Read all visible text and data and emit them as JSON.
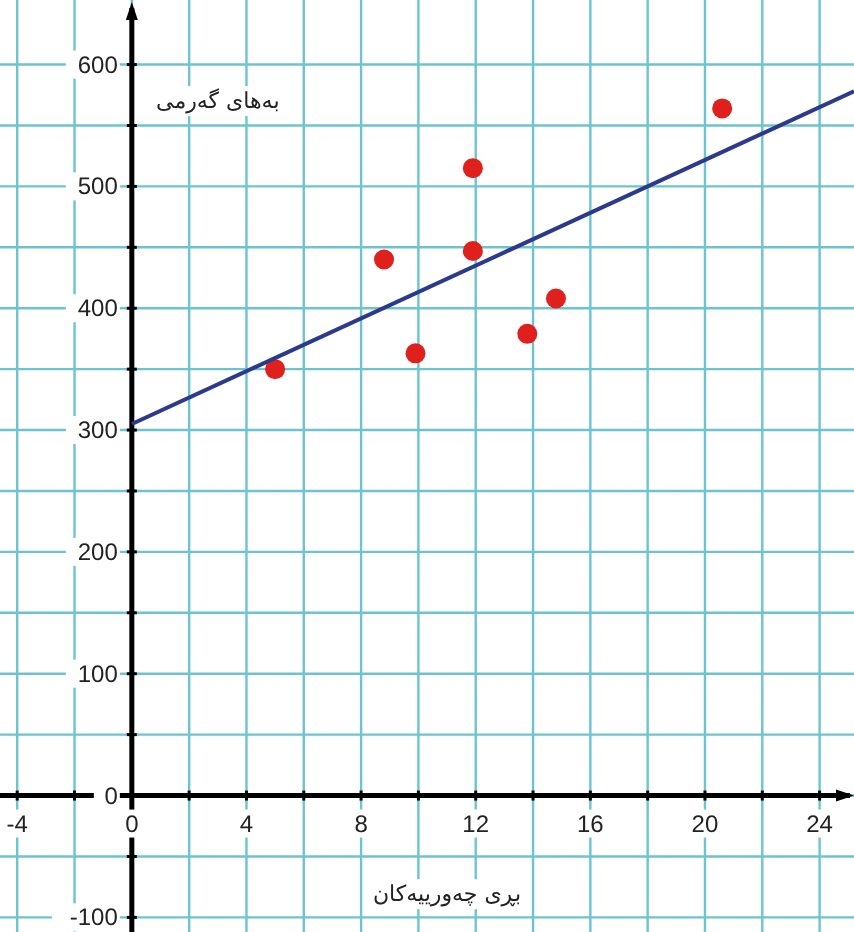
{
  "chart_data": {
    "type": "scatter",
    "xlabel": "بڕی چەورییەکان",
    "ylabel": "بەهای گەرمی",
    "xlim": [
      -4.6,
      25.2
    ],
    "ylim": [
      -112,
      653
    ],
    "xticks": [
      -4,
      {
        "value": -2,
        "label": null
      },
      0,
      {
        "value": 2,
        "label": null
      },
      4,
      {
        "value": 6,
        "label": null
      },
      8,
      {
        "value": 10,
        "label": null
      },
      12,
      {
        "value": 14,
        "label": null
      },
      16,
      {
        "value": 18,
        "label": null
      },
      20,
      {
        "value": 22,
        "label": null
      },
      24
    ],
    "yticks": [
      -100,
      {
        "value": -50,
        "label": null
      },
      0,
      {
        "value": 50,
        "label": null
      },
      100,
      {
        "value": 150,
        "label": null
      },
      200,
      {
        "value": 250,
        "label": null
      },
      300,
      {
        "value": 350,
        "label": null
      },
      400,
      {
        "value": 450,
        "label": null
      },
      500,
      {
        "value": 550,
        "label": null
      },
      600
    ],
    "grid": true,
    "series": [
      {
        "color": "#e0201c",
        "marker": "circle",
        "x": [
          5,
          8.8,
          9.9,
          11.9,
          11.9,
          13.8,
          14.8,
          20.6
        ],
        "values": [
          350,
          440,
          363,
          515,
          447,
          379,
          408,
          564
        ]
      },
      {
        "type": "line",
        "color": "#2b3a8c",
        "marker": "none",
        "x": [
          0,
          25.2
        ],
        "values": [
          305,
          578
        ]
      }
    ]
  }
}
